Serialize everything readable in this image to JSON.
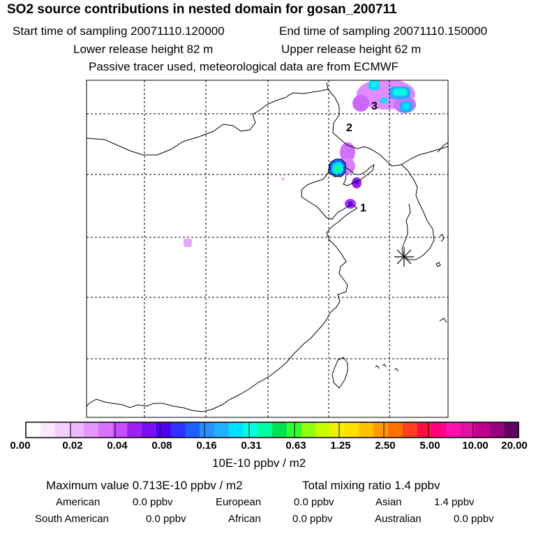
{
  "header": {
    "title": "SO2 source contributions in nested domain for gosan_200711",
    "start_time": "Start time of sampling 20071110.120000",
    "end_time": "End time of sampling 20071110.150000",
    "lower_height": "Lower release height   82 m",
    "upper_height": "Upper release height   62 m",
    "tracer_note": "Passive tracer used, meteorological data are from ECMWF"
  },
  "map": {
    "receptor_symbol": "asterisk",
    "source_labels": [
      "1",
      "2",
      "3"
    ]
  },
  "colorbar": {
    "labels": [
      "0.00",
      "0.02",
      "0.04",
      "0.08",
      "0.16",
      "0.31",
      "0.63",
      "1.25",
      "2.50",
      "5.00",
      "10.00",
      "20.00"
    ],
    "colors": [
      "#ffffff",
      "#fbe8ff",
      "#f5d0ff",
      "#eeb8ff",
      "#e896ff",
      "#dc70ff",
      "#c84cff",
      "#a020f0",
      "#7a10f0",
      "#5000f0",
      "#3030ff",
      "#2060ff",
      "#2890ff",
      "#20b0ff",
      "#00e0ff",
      "#00ffe0",
      "#00ffa0",
      "#00e050",
      "#30ff30",
      "#90ff10",
      "#c8ff00",
      "#f0f000",
      "#ffe000",
      "#ffc000",
      "#ff9800",
      "#ff7000",
      "#ff4020",
      "#ff1040",
      "#ff0080",
      "#ff10b0",
      "#e010a0",
      "#c00090",
      "#980080",
      "#600060"
    ],
    "unit": "10E-10 ppbv / m2"
  },
  "summary": {
    "max_value": "Maximum value  0.713E-10 ppbv / m2",
    "total_mixing": "Total mixing ratio       1.4 ppbv",
    "regions": [
      {
        "name": "American",
        "value": "0.0 ppbv"
      },
      {
        "name": "European",
        "value": "0.0 ppbv"
      },
      {
        "name": "Asian",
        "value": "1.4 ppbv"
      },
      {
        "name": "South American",
        "value": "0.0 ppbv"
      },
      {
        "name": "African",
        "value": "0.0 ppbv"
      },
      {
        "name": "Australian",
        "value": "0.0 ppbv"
      }
    ]
  }
}
